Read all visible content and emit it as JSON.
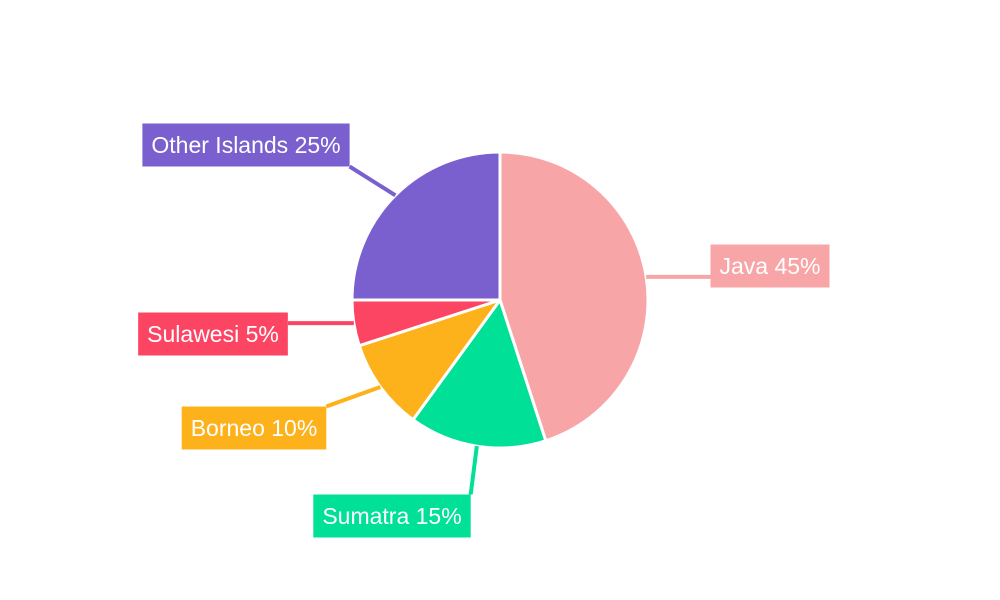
{
  "chart_data": {
    "type": "pie",
    "title": "",
    "categories": [
      "Java",
      "Sumatra",
      "Borneo",
      "Sulawesi",
      "Other Islands"
    ],
    "values": [
      45,
      15,
      10,
      5,
      25
    ],
    "unit": "%",
    "labels": [
      "Java 45%",
      "Sumatra 15%",
      "Borneo 10%",
      "Sulawesi 5%",
      "Other Islands 25%"
    ],
    "colors": [
      "#F8A5A7",
      "#00E096",
      "#FDB11B",
      "#FC4563",
      "#7A60CF"
    ],
    "direction": "clockwise",
    "start_angle": "top",
    "legend": "none",
    "label_style": "outside boxes with leader lines"
  }
}
